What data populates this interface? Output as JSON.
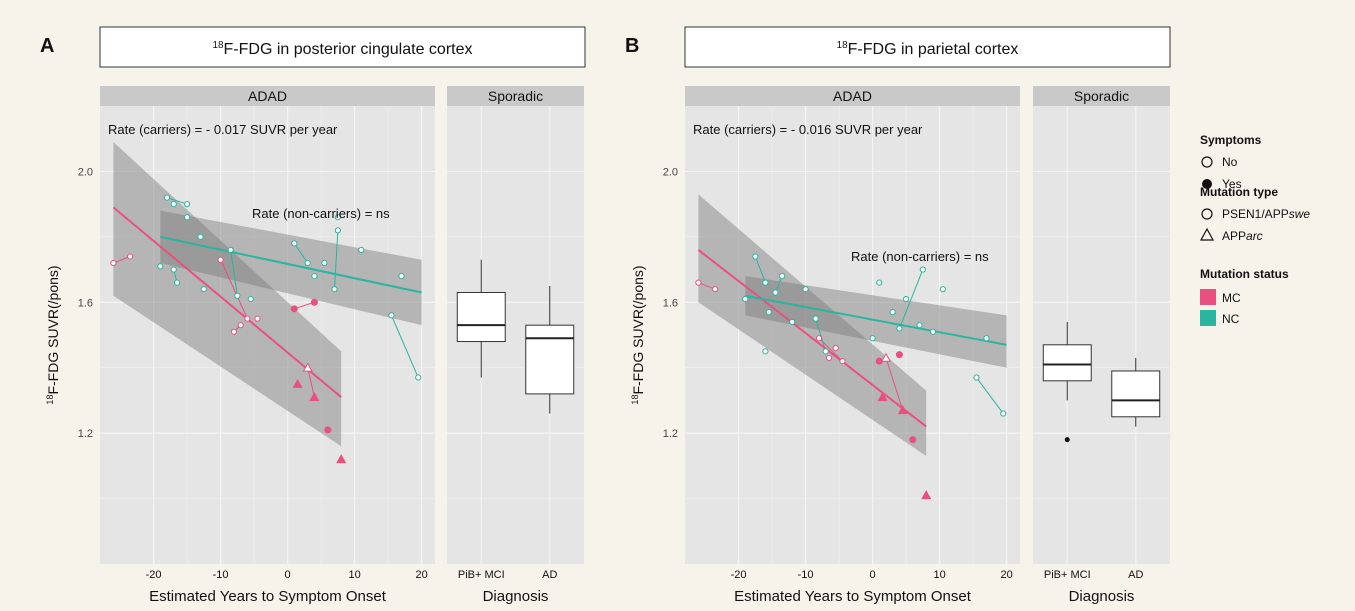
{
  "colors": {
    "background": "#f6f3ea",
    "panel": "#e5e5e5",
    "strip": "#c9c9c9",
    "mc": "#e8517f",
    "nc": "#2ab5a0",
    "ribbon": "#7a7a7a"
  },
  "legend": {
    "symptoms_title": "Symptoms",
    "symptoms_no": "No",
    "symptoms_yes": "Yes",
    "mutation_type_title": "Mutation type",
    "mutation_type_psen1": "PSEN1/APP",
    "mutation_type_psen1_italic": "swe",
    "mutation_type_app": "APP",
    "mutation_type_app_italic": "arc",
    "mutation_status_title": "Mutation status",
    "mutation_status_mc": "MC",
    "mutation_status_nc": "NC"
  },
  "chart_data": [
    {
      "type": "scatter",
      "panel_letter": "A",
      "title_sup": "18",
      "title": "F-FDG in posterior cingulate cortex",
      "ylabel_sup": "18",
      "ylabel": "F-FDG SUVR(/pons)",
      "adad": {
        "strip": "ADAD",
        "xlabel": "Estimated Years to Symptom Onset",
        "xlim": [
          -28,
          22
        ],
        "ylim": [
          0.8,
          2.2
        ],
        "xticks": [
          -20,
          -10,
          0,
          10,
          20
        ],
        "yticks": [
          1.2,
          1.6,
          2.0
        ],
        "rate_carriers": "Rate (carriers) = - 0.017 SUVR per year",
        "rate_noncarriers": "Rate (non-carriers) = ns",
        "mc_fit": {
          "x": [
            -26,
            8
          ],
          "y": [
            1.89,
            1.31
          ],
          "band_lo": [
            1.62,
            1.16
          ],
          "band_hi": [
            2.09,
            1.45
          ]
        },
        "nc_fit": {
          "x": [
            -19,
            20
          ],
          "y": [
            1.8,
            1.63
          ],
          "band_lo": [
            1.72,
            1.53
          ],
          "band_hi": [
            1.88,
            1.73
          ]
        },
        "mc_points": [
          {
            "x": -26,
            "y": 1.72,
            "shape": "circle",
            "filled": false
          },
          {
            "x": -23.5,
            "y": 1.74,
            "shape": "circle",
            "filled": false
          },
          {
            "x": -10,
            "y": 1.73,
            "shape": "circle",
            "filled": false
          },
          {
            "x": -8,
            "y": 1.51,
            "shape": "circle",
            "filled": false
          },
          {
            "x": -7,
            "y": 1.53,
            "shape": "circle",
            "filled": false
          },
          {
            "x": -6,
            "y": 1.55,
            "shape": "circle",
            "filled": false
          },
          {
            "x": -4.5,
            "y": 1.55,
            "shape": "circle",
            "filled": false
          },
          {
            "x": 1,
            "y": 1.58,
            "shape": "circle",
            "filled": true
          },
          {
            "x": 4,
            "y": 1.6,
            "shape": "circle",
            "filled": true
          },
          {
            "x": 3,
            "y": 1.4,
            "shape": "triangle",
            "filled": false
          },
          {
            "x": 1.5,
            "y": 1.35,
            "shape": "triangle",
            "filled": true
          },
          {
            "x": 4,
            "y": 1.31,
            "shape": "triangle",
            "filled": true
          },
          {
            "x": 6,
            "y": 1.21,
            "shape": "circle",
            "filled": true
          },
          {
            "x": 8,
            "y": 1.12,
            "shape": "triangle",
            "filled": true
          }
        ],
        "mc_links": [
          [
            [
              -26,
              1.72
            ],
            [
              -23.5,
              1.74
            ]
          ],
          [
            [
              -10,
              1.73
            ],
            [
              -6,
              1.55
            ]
          ],
          [
            [
              -8,
              1.51
            ],
            [
              -7,
              1.53
            ]
          ],
          [
            [
              1,
              1.58
            ],
            [
              4,
              1.6
            ]
          ],
          [
            [
              3,
              1.4
            ],
            [
              4,
              1.31
            ]
          ]
        ],
        "nc_points": [
          {
            "x": -19,
            "y": 1.71
          },
          {
            "x": -18,
            "y": 1.92
          },
          {
            "x": -17,
            "y": 1.9
          },
          {
            "x": -15,
            "y": 1.9
          },
          {
            "x": -17,
            "y": 1.7
          },
          {
            "x": -16.5,
            "y": 1.66
          },
          {
            "x": -15,
            "y": 1.86
          },
          {
            "x": -13,
            "y": 1.8
          },
          {
            "x": -12.5,
            "y": 1.64
          },
          {
            "x": -8.5,
            "y": 1.76
          },
          {
            "x": -7.5,
            "y": 1.62
          },
          {
            "x": -5.5,
            "y": 1.61
          },
          {
            "x": 1,
            "y": 1.78
          },
          {
            "x": 3,
            "y": 1.72
          },
          {
            "x": 4,
            "y": 1.68
          },
          {
            "x": 5.5,
            "y": 1.72
          },
          {
            "x": 7,
            "y": 1.64
          },
          {
            "x": 7.5,
            "y": 1.82
          },
          {
            "x": 7.5,
            "y": 1.86
          },
          {
            "x": 11,
            "y": 1.76
          },
          {
            "x": 15.5,
            "y": 1.56
          },
          {
            "x": 17,
            "y": 1.68
          },
          {
            "x": 19.5,
            "y": 1.37
          }
        ],
        "nc_links": [
          [
            [
              -18,
              1.92
            ],
            [
              -15,
              1.9
            ]
          ],
          [
            [
              -17,
              1.7
            ],
            [
              -16.5,
              1.66
            ]
          ],
          [
            [
              -8.5,
              1.76
            ],
            [
              -7.5,
              1.62
            ]
          ],
          [
            [
              1,
              1.78
            ],
            [
              3,
              1.72
            ]
          ],
          [
            [
              7,
              1.64
            ],
            [
              7.5,
              1.82
            ]
          ],
          [
            [
              15.5,
              1.56
            ],
            [
              19.5,
              1.37
            ]
          ]
        ]
      },
      "sporadic": {
        "strip": "Sporadic",
        "xlabel": "Diagnosis",
        "categories": [
          "PiB+ MCI",
          "AD"
        ],
        "boxes": [
          {
            "q1": 1.48,
            "median": 1.53,
            "q3": 1.63,
            "lo": 1.37,
            "hi": 1.73,
            "outliers": []
          },
          {
            "q1": 1.32,
            "median": 1.49,
            "q3": 1.53,
            "lo": 1.26,
            "hi": 1.65,
            "outliers": []
          }
        ]
      }
    },
    {
      "type": "scatter",
      "panel_letter": "B",
      "title_sup": "18",
      "title": "F-FDG in parietal cortex",
      "ylabel_sup": "18",
      "ylabel": "F-FDG SUVR(/pons)",
      "adad": {
        "strip": "ADAD",
        "xlabel": "Estimated Years to Symptom Onset",
        "xlim": [
          -28,
          22
        ],
        "ylim": [
          0.8,
          2.2
        ],
        "xticks": [
          -20,
          -10,
          0,
          10,
          20
        ],
        "yticks": [
          1.2,
          1.6,
          2.0
        ],
        "rate_carriers": "Rate (carriers) = - 0.016 SUVR per year",
        "rate_noncarriers": "Rate (non-carriers) = ns",
        "mc_fit": {
          "x": [
            -26,
            8
          ],
          "y": [
            1.76,
            1.22
          ],
          "band_lo": [
            1.6,
            1.13
          ],
          "band_hi": [
            1.93,
            1.33
          ]
        },
        "nc_fit": {
          "x": [
            -19,
            20
          ],
          "y": [
            1.62,
            1.47
          ],
          "band_lo": [
            1.56,
            1.4
          ],
          "band_hi": [
            1.68,
            1.56
          ]
        },
        "mc_points": [
          {
            "x": -26,
            "y": 1.66,
            "shape": "circle",
            "filled": false
          },
          {
            "x": -23.5,
            "y": 1.64,
            "shape": "circle",
            "filled": false
          },
          {
            "x": -8,
            "y": 1.49,
            "shape": "circle",
            "filled": false
          },
          {
            "x": -6.5,
            "y": 1.43,
            "shape": "circle",
            "filled": false
          },
          {
            "x": -5.5,
            "y": 1.46,
            "shape": "circle",
            "filled": false
          },
          {
            "x": -4.5,
            "y": 1.42,
            "shape": "circle",
            "filled": false
          },
          {
            "x": 1,
            "y": 1.42,
            "shape": "circle",
            "filled": true
          },
          {
            "x": 2,
            "y": 1.43,
            "shape": "triangle",
            "filled": false
          },
          {
            "x": 4,
            "y": 1.44,
            "shape": "circle",
            "filled": true
          },
          {
            "x": 1.5,
            "y": 1.31,
            "shape": "triangle",
            "filled": true
          },
          {
            "x": 4.5,
            "y": 1.27,
            "shape": "triangle",
            "filled": true
          },
          {
            "x": 6,
            "y": 1.18,
            "shape": "circle",
            "filled": true
          },
          {
            "x": 8,
            "y": 1.01,
            "shape": "triangle",
            "filled": true
          }
        ],
        "mc_links": [
          [
            [
              -26,
              1.66
            ],
            [
              -23.5,
              1.64
            ]
          ],
          [
            [
              -8,
              1.49
            ],
            [
              -4.5,
              1.42
            ]
          ],
          [
            [
              1,
              1.42
            ],
            [
              2,
              1.43
            ]
          ],
          [
            [
              2,
              1.43
            ],
            [
              4.5,
              1.27
            ]
          ]
        ],
        "nc_points": [
          {
            "x": -19,
            "y": 1.61
          },
          {
            "x": -17.5,
            "y": 1.74
          },
          {
            "x": -16,
            "y": 1.66
          },
          {
            "x": -15.5,
            "y": 1.57
          },
          {
            "x": -16,
            "y": 1.45
          },
          {
            "x": -14.5,
            "y": 1.63
          },
          {
            "x": -13.5,
            "y": 1.68
          },
          {
            "x": -12,
            "y": 1.54
          },
          {
            "x": -10,
            "y": 1.64
          },
          {
            "x": -8.5,
            "y": 1.55
          },
          {
            "x": -7,
            "y": 1.45
          },
          {
            "x": 0,
            "y": 1.49
          },
          {
            "x": 1,
            "y": 1.66
          },
          {
            "x": 3,
            "y": 1.57
          },
          {
            "x": 4,
            "y": 1.52
          },
          {
            "x": 5,
            "y": 1.61
          },
          {
            "x": 7,
            "y": 1.53
          },
          {
            "x": 7.5,
            "y": 1.7
          },
          {
            "x": 9,
            "y": 1.51
          },
          {
            "x": 10.5,
            "y": 1.64
          },
          {
            "x": 15.5,
            "y": 1.37
          },
          {
            "x": 17,
            "y": 1.49
          },
          {
            "x": 19.5,
            "y": 1.26
          }
        ],
        "nc_links": [
          [
            [
              -17.5,
              1.74
            ],
            [
              -16,
              1.66
            ]
          ],
          [
            [
              -14.5,
              1.63
            ],
            [
              -13.5,
              1.68
            ]
          ],
          [
            [
              -8.5,
              1.55
            ],
            [
              -7,
              1.45
            ]
          ],
          [
            [
              4,
              1.52
            ],
            [
              7.5,
              1.7
            ]
          ],
          [
            [
              15.5,
              1.37
            ],
            [
              19.5,
              1.26
            ]
          ]
        ]
      },
      "sporadic": {
        "strip": "Sporadic",
        "xlabel": "Diagnosis",
        "categories": [
          "PiB+ MCI",
          "AD"
        ],
        "boxes": [
          {
            "q1": 1.36,
            "median": 1.41,
            "q3": 1.47,
            "lo": 1.3,
            "hi": 1.54,
            "outliers": [
              1.18
            ]
          },
          {
            "q1": 1.25,
            "median": 1.3,
            "q3": 1.39,
            "lo": 1.22,
            "hi": 1.43,
            "outliers": []
          }
        ]
      }
    }
  ]
}
